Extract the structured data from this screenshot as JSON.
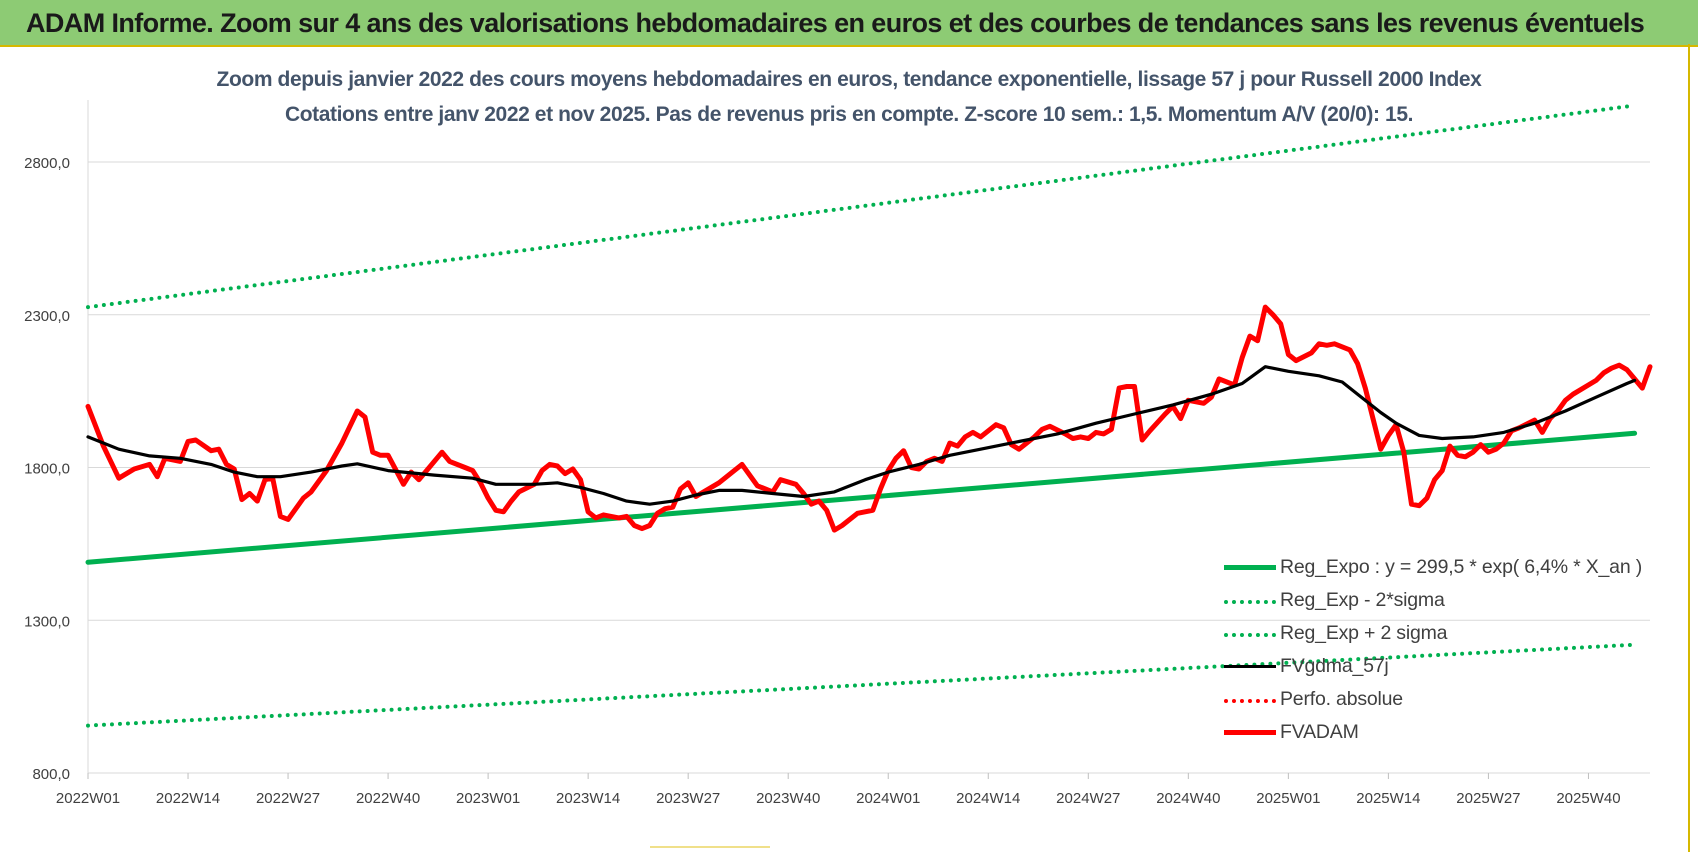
{
  "header": {
    "title": "ADAM Informe. Zoom sur 4 ans des valorisations hebdomadaires en euros et des courbes de tendances sans les revenus éventuels"
  },
  "chart_subtitle": {
    "line1": "Zoom depuis janvier 2022 des cours moyens hebdomadaires en euros, tendance exponentielle, lissage 57 j pour Russell 2000 Index",
    "line2": "Cotations entre janv 2022 et nov 2025. Pas de revenus pris en compte. Z-score 10 sem.: 1,5. Momentum A/V (20/0): 15."
  },
  "colors": {
    "header_bg": "#8dcb74",
    "reg_green": "#00b050",
    "fvgdma": "#000000",
    "fvadam": "#ff0000",
    "grid": "#d9d9d9"
  },
  "chart_data": {
    "type": "line",
    "x_tick_labels": [
      "2022W01",
      "2022W14",
      "2022W27",
      "2022W40",
      "2023W01",
      "2023W14",
      "2023W27",
      "2023W40",
      "2024W01",
      "2024W14",
      "2024W27",
      "2024W40",
      "2025W01",
      "2025W14",
      "2025W27",
      "2025W40"
    ],
    "y_tick_labels": [
      "800,0",
      "1300,0",
      "1800,0",
      "2300,0",
      "2800,0"
    ],
    "y_ticks": [
      800,
      1300,
      1800,
      2300,
      2800
    ],
    "ylim": [
      800,
      3000
    ],
    "x_start_week": "2022W01",
    "x_end_week": "2025W46",
    "grid": "horizontal",
    "legend_position": "bottom-right",
    "series": [
      {
        "name": "Reg_Expo : y = 299,5 * exp( 6,4% *  X_an )",
        "style": "solid-thick",
        "color": "#00b050",
        "points": [
          [
            "2022W01",
            1490
          ],
          [
            "2025W46",
            1912
          ]
        ]
      },
      {
        "name": "Reg_Exp - 2*sigma",
        "style": "dotted",
        "color": "#00b050",
        "points": [
          [
            "2022W01",
            955
          ],
          [
            "2025W46",
            1220
          ]
        ]
      },
      {
        "name": "Reg_Exp + 2 sigma",
        "style": "dotted",
        "color": "#00b050",
        "points": [
          [
            "2022W01",
            2325
          ],
          [
            "2025W46",
            2985
          ]
        ]
      },
      {
        "name": "FVgdma_57j",
        "style": "solid",
        "color": "#000000",
        "points": [
          [
            "2022W01",
            1900
          ],
          [
            "2022W05",
            1860
          ],
          [
            "2022W09",
            1838
          ],
          [
            "2022W13",
            1830
          ],
          [
            "2022W17",
            1810
          ],
          [
            "2022W20",
            1785
          ],
          [
            "2022W23",
            1770
          ],
          [
            "2022W26",
            1770
          ],
          [
            "2022W30",
            1785
          ],
          [
            "2022W34",
            1805
          ],
          [
            "2022W36",
            1812
          ],
          [
            "2022W40",
            1790
          ],
          [
            "2022W46",
            1775
          ],
          [
            "2022W51",
            1765
          ],
          [
            "2023W02",
            1745
          ],
          [
            "2023W07",
            1745
          ],
          [
            "2023W10",
            1750
          ],
          [
            "2023W13",
            1735
          ],
          [
            "2023W16",
            1715
          ],
          [
            "2023W19",
            1690
          ],
          [
            "2023W22",
            1680
          ],
          [
            "2023W25",
            1690
          ],
          [
            "2023W28",
            1710
          ],
          [
            "2023W31",
            1725
          ],
          [
            "2023W34",
            1725
          ],
          [
            "2023W38",
            1715
          ],
          [
            "2023W42",
            1705
          ],
          [
            "2023W46",
            1720
          ],
          [
            "2023W50",
            1760
          ],
          [
            "2024W01",
            1785
          ],
          [
            "2024W05",
            1810
          ],
          [
            "2024W09",
            1840
          ],
          [
            "2024W13",
            1860
          ],
          [
            "2024W18",
            1885
          ],
          [
            "2024W23",
            1910
          ],
          [
            "2024W28",
            1945
          ],
          [
            "2024W33",
            1975
          ],
          [
            "2024W38",
            2005
          ],
          [
            "2024W43",
            2040
          ],
          [
            "2024W47",
            2075
          ],
          [
            "2024W50",
            2130
          ],
          [
            "2025W01",
            2115
          ],
          [
            "2025W05",
            2100
          ],
          [
            "2025W08",
            2080
          ],
          [
            "2025W10",
            2040
          ],
          [
            "2025W13",
            1980
          ],
          [
            "2025W15",
            1945
          ],
          [
            "2025W18",
            1905
          ],
          [
            "2025W21",
            1895
          ],
          [
            "2025W25",
            1900
          ],
          [
            "2025W29",
            1915
          ],
          [
            "2025W33",
            1945
          ],
          [
            "2025W37",
            1985
          ],
          [
            "2025W41",
            2030
          ],
          [
            "2025W45",
            2075
          ],
          [
            "2025W46",
            2085
          ]
        ]
      },
      {
        "name": "Perfo. absolue",
        "style": "dotted",
        "color": "#ff0000",
        "points": []
      },
      {
        "name": "FVADAM",
        "style": "solid-thick",
        "color": "#ff0000",
        "points": [
          [
            "2022W01",
            2000
          ],
          [
            "2022W03",
            1870
          ],
          [
            "2022W05",
            1765
          ],
          [
            "2022W07",
            1795
          ],
          [
            "2022W09",
            1810
          ],
          [
            "2022W10",
            1770
          ],
          [
            "2022W11",
            1830
          ],
          [
            "2022W13",
            1820
          ],
          [
            "2022W14",
            1885
          ],
          [
            "2022W15",
            1890
          ],
          [
            "2022W17",
            1855
          ],
          [
            "2022W18",
            1860
          ],
          [
            "2022W19",
            1810
          ],
          [
            "2022W20",
            1795
          ],
          [
            "2022W21",
            1695
          ],
          [
            "2022W22",
            1715
          ],
          [
            "2022W23",
            1690
          ],
          [
            "2022W24",
            1760
          ],
          [
            "2022W25",
            1765
          ],
          [
            "2022W26",
            1640
          ],
          [
            "2022W27",
            1630
          ],
          [
            "2022W29",
            1700
          ],
          [
            "2022W30",
            1720
          ],
          [
            "2022W32",
            1790
          ],
          [
            "2022W34",
            1880
          ],
          [
            "2022W36",
            1985
          ],
          [
            "2022W37",
            1965
          ],
          [
            "2022W38",
            1850
          ],
          [
            "2022W39",
            1840
          ],
          [
            "2022W40",
            1840
          ],
          [
            "2022W42",
            1745
          ],
          [
            "2022W43",
            1785
          ],
          [
            "2022W44",
            1760
          ],
          [
            "2022W45",
            1790
          ],
          [
            "2022W47",
            1850
          ],
          [
            "2022W48",
            1820
          ],
          [
            "2022W50",
            1800
          ],
          [
            "2022W51",
            1790
          ],
          [
            "2022W52",
            1750
          ],
          [
            "2023W01",
            1700
          ],
          [
            "2023W02",
            1660
          ],
          [
            "2023W03",
            1655
          ],
          [
            "2023W04",
            1690
          ],
          [
            "2023W05",
            1720
          ],
          [
            "2023W07",
            1745
          ],
          [
            "2023W08",
            1790
          ],
          [
            "2023W09",
            1810
          ],
          [
            "2023W10",
            1805
          ],
          [
            "2023W11",
            1780
          ],
          [
            "2023W12",
            1795
          ],
          [
            "2023W13",
            1760
          ],
          [
            "2023W14",
            1655
          ],
          [
            "2023W15",
            1635
          ],
          [
            "2023W16",
            1645
          ],
          [
            "2023W18",
            1635
          ],
          [
            "2023W19",
            1640
          ],
          [
            "2023W20",
            1610
          ],
          [
            "2023W21",
            1600
          ],
          [
            "2023W22",
            1610
          ],
          [
            "2023W23",
            1650
          ],
          [
            "2023W24",
            1665
          ],
          [
            "2023W25",
            1670
          ],
          [
            "2023W26",
            1730
          ],
          [
            "2023W27",
            1750
          ],
          [
            "2023W28",
            1705
          ],
          [
            "2023W29",
            1720
          ],
          [
            "2023W31",
            1750
          ],
          [
            "2023W33",
            1790
          ],
          [
            "2023W34",
            1810
          ],
          [
            "2023W36",
            1740
          ],
          [
            "2023W38",
            1720
          ],
          [
            "2023W39",
            1760
          ],
          [
            "2023W41",
            1745
          ],
          [
            "2023W42",
            1715
          ],
          [
            "2023W43",
            1680
          ],
          [
            "2023W44",
            1690
          ],
          [
            "2023W45",
            1660
          ],
          [
            "2023W46",
            1595
          ],
          [
            "2023W47",
            1610
          ],
          [
            "2023W49",
            1650
          ],
          [
            "2023W51",
            1660
          ],
          [
            "2023W52",
            1730
          ],
          [
            "2024W01",
            1790
          ],
          [
            "2024W02",
            1830
          ],
          [
            "2024W03",
            1855
          ],
          [
            "2024W04",
            1800
          ],
          [
            "2024W05",
            1795
          ],
          [
            "2024W06",
            1820
          ],
          [
            "2024W07",
            1830
          ],
          [
            "2024W08",
            1820
          ],
          [
            "2024W09",
            1880
          ],
          [
            "2024W10",
            1870
          ],
          [
            "2024W11",
            1900
          ],
          [
            "2024W12",
            1915
          ],
          [
            "2024W13",
            1900
          ],
          [
            "2024W15",
            1940
          ],
          [
            "2024W16",
            1930
          ],
          [
            "2024W17",
            1875
          ],
          [
            "2024W18",
            1860
          ],
          [
            "2024W20",
            1900
          ],
          [
            "2024W21",
            1925
          ],
          [
            "2024W22",
            1935
          ],
          [
            "2024W24",
            1910
          ],
          [
            "2024W25",
            1895
          ],
          [
            "2024W26",
            1900
          ],
          [
            "2024W27",
            1895
          ],
          [
            "2024W28",
            1915
          ],
          [
            "2024W29",
            1910
          ],
          [
            "2024W30",
            1925
          ],
          [
            "2024W31",
            2060
          ],
          [
            "2024W32",
            2065
          ],
          [
            "2024W33",
            2065
          ],
          [
            "2024W34",
            1890
          ],
          [
            "2024W35",
            1920
          ],
          [
            "2024W37",
            1975
          ],
          [
            "2024W38",
            2000
          ],
          [
            "2024W39",
            1960
          ],
          [
            "2024W40",
            2020
          ],
          [
            "2024W41",
            2015
          ],
          [
            "2024W42",
            2010
          ],
          [
            "2024W43",
            2030
          ],
          [
            "2024W44",
            2090
          ],
          [
            "2024W46",
            2070
          ],
          [
            "2024W47",
            2160
          ],
          [
            "2024W48",
            2230
          ],
          [
            "2024W49",
            2215
          ],
          [
            "2024W50",
            2325
          ],
          [
            "2024W51",
            2300
          ],
          [
            "2024W52",
            2270
          ],
          [
            "2025W01",
            2170
          ],
          [
            "2025W02",
            2150
          ],
          [
            "2025W04",
            2175
          ],
          [
            "2025W05",
            2205
          ],
          [
            "2025W06",
            2200
          ],
          [
            "2025W07",
            2205
          ],
          [
            "2025W09",
            2185
          ],
          [
            "2025W10",
            2140
          ],
          [
            "2025W11",
            2060
          ],
          [
            "2025W12",
            1960
          ],
          [
            "2025W13",
            1860
          ],
          [
            "2025W14",
            1905
          ],
          [
            "2025W15",
            1940
          ],
          [
            "2025W16",
            1850
          ],
          [
            "2025W17",
            1680
          ],
          [
            "2025W18",
            1675
          ],
          [
            "2025W19",
            1700
          ],
          [
            "2025W20",
            1760
          ],
          [
            "2025W21",
            1790
          ],
          [
            "2025W22",
            1870
          ],
          [
            "2025W23",
            1840
          ],
          [
            "2025W24",
            1835
          ],
          [
            "2025W25",
            1850
          ],
          [
            "2025W26",
            1875
          ],
          [
            "2025W27",
            1850
          ],
          [
            "2025W28",
            1860
          ],
          [
            "2025W29",
            1880
          ],
          [
            "2025W30",
            1920
          ],
          [
            "2025W31",
            1930
          ],
          [
            "2025W33",
            1955
          ],
          [
            "2025W34",
            1915
          ],
          [
            "2025W35",
            1960
          ],
          [
            "2025W36",
            1985
          ],
          [
            "2025W37",
            2020
          ],
          [
            "2025W38",
            2040
          ],
          [
            "2025W40",
            2070
          ],
          [
            "2025W41",
            2085
          ],
          [
            "2025W42",
            2110
          ],
          [
            "2025W43",
            2125
          ],
          [
            "2025W44",
            2135
          ],
          [
            "2025W45",
            2120
          ],
          [
            "2025W46",
            2090
          ],
          [
            "2025W47",
            2060
          ],
          [
            "2025W48",
            2130
          ]
        ]
      }
    ]
  }
}
